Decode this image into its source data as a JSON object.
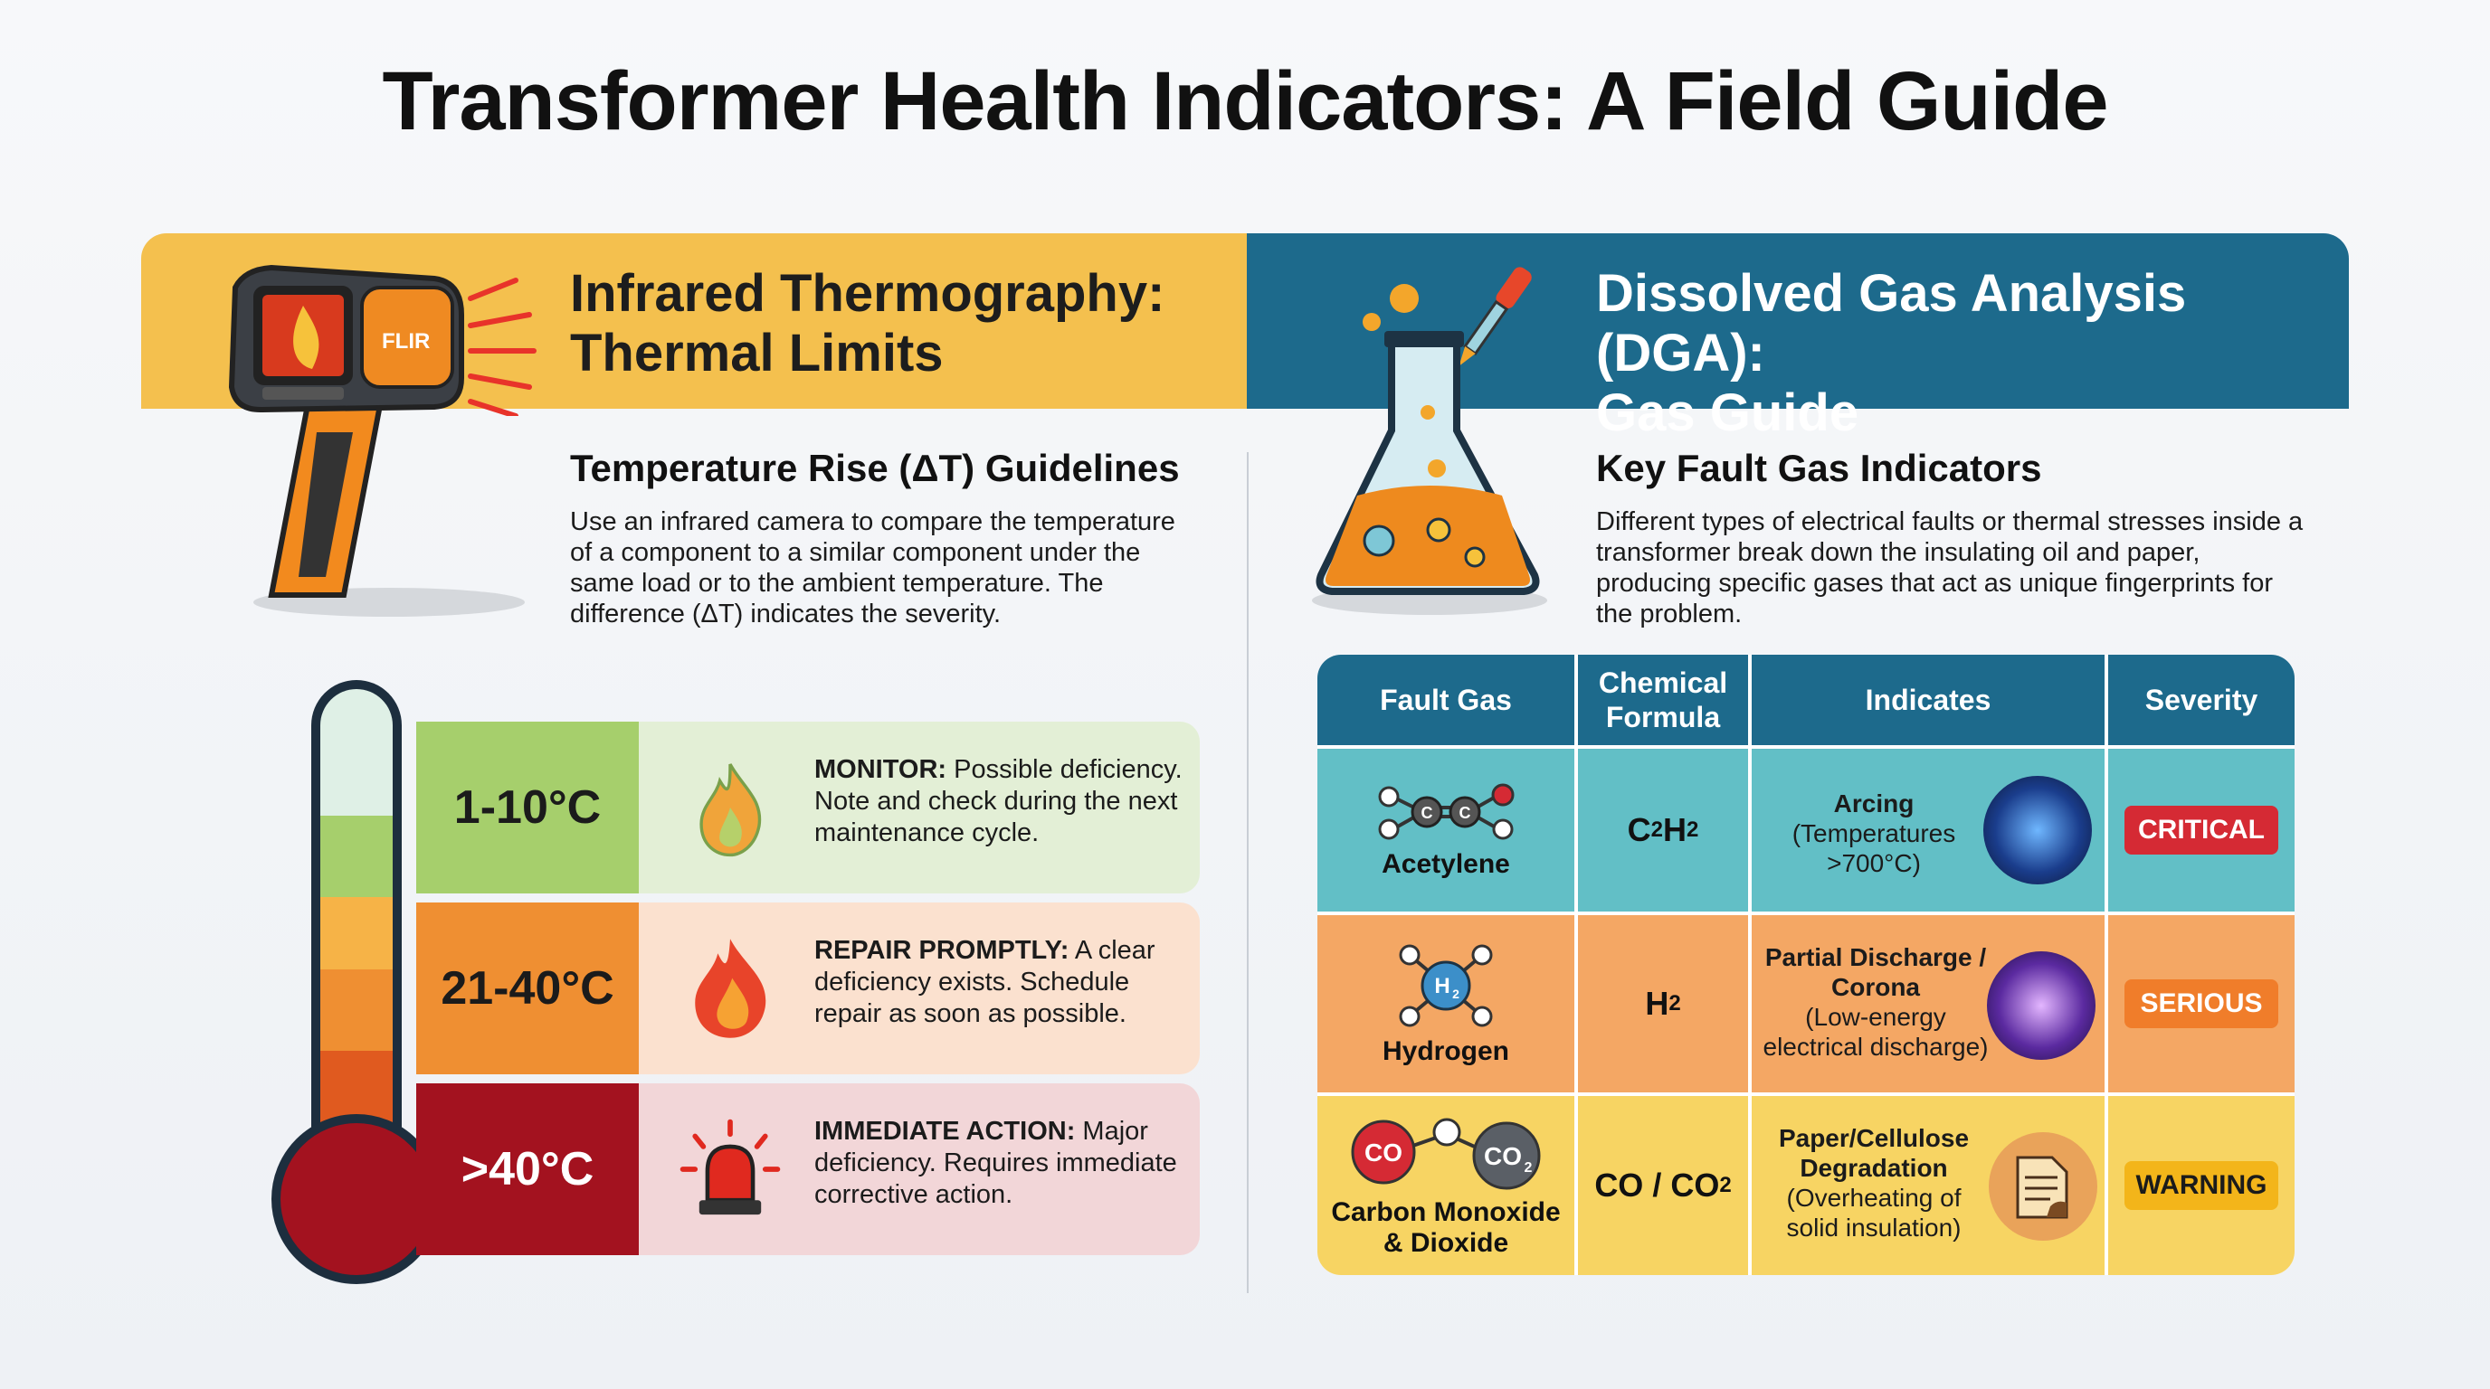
{
  "title": "Transformer Health Indicators: A Field Guide",
  "left": {
    "header": "Infrared Thermography: Thermal Limits",
    "header_line1": "Infrared Thermography:",
    "header_line2": "Thermal Limits",
    "camera_brand": "FLIR",
    "subtitle": "Temperature Rise (ΔT) Guidelines",
    "intro": "Use an infrared camera to compare the temperature of a component to a similar component under the same load or to the ambient temperature. The difference (ΔT) indicates the severity.",
    "rows": [
      {
        "range": "1-10°C",
        "action": "MONITOR:",
        "text": " Possible deficiency. Note and check during the next maintenance cycle.",
        "icon": "small-flame-icon",
        "color": "#a6cf6c",
        "bg": "#e3efd6"
      },
      {
        "range": "21-40°C",
        "action": "REPAIR PROMPTLY:",
        "text": " A clear deficiency exists. Schedule repair as soon as possible.",
        "icon": "flame-icon",
        "color": "#ef8f32",
        "bg": "#fbe1cf"
      },
      {
        "range": ">40°C",
        "action": "IMMEDIATE ACTION:",
        "text": " Major deficiency. Requires immediate corrective action.",
        "icon": "alarm-light-icon",
        "color": "#a3121f",
        "bg": "#f2d6d8"
      }
    ]
  },
  "right": {
    "header": "Dissolved Gas Analysis (DGA): Gas Guide",
    "header_line1": "Dissolved Gas Analysis (DGA):",
    "header_line2": "Gas Guide",
    "subtitle": "Key Fault Gas Indicators",
    "intro": "Different types of electrical faults or thermal stresses inside a transformer break down the insulating oil and paper, producing specific gases that act as unique fingerprints for the problem.",
    "table": {
      "headers": [
        "Fault Gas",
        "Chemical Formula",
        "Indicates",
        "Severity"
      ],
      "header_formula_line1": "Chemical",
      "header_formula_line2": "Formula",
      "rows": [
        {
          "gas": "Acetylene",
          "gas_lines": [
            "Acetylene"
          ],
          "molecule": [
            "C",
            "C"
          ],
          "formula_main": "C",
          "formula_sub": "2",
          "formula_main2": "H",
          "formula_sub2": "2",
          "indicates_bold": [
            "Arcing"
          ],
          "indicates": "(Temperatures >700°C)",
          "indicates_lines": [
            "(Temperatures",
            ">700°C)"
          ],
          "severity": "CRITICAL",
          "bg": "#62bfc6",
          "badge_bg": "#d52a34",
          "icon": "arc-plasma-icon"
        },
        {
          "gas": "Hydrogen",
          "gas_lines": [
            "Hydrogen"
          ],
          "molecule_label": "H",
          "molecule_sub": "2",
          "formula_main": "H",
          "formula_sub": "2",
          "indicates_bold": [
            "Partial Discharge /",
            "Corona"
          ],
          "indicates": "(Low-energy electrical discharge)",
          "indicates_lines": [
            "(Low-energy",
            "electrical discharge)"
          ],
          "severity": "SERIOUS",
          "bg": "#f4a764",
          "badge_bg": "#f07d2a",
          "icon": "plasma-ball-icon"
        },
        {
          "gas": "Carbon Monoxide & Dioxide",
          "gas_lines": [
            "Carbon Monoxide",
            "& Dioxide"
          ],
          "molecule_co": "CO",
          "molecule_co2_main": "CO",
          "molecule_co2_sub": "2",
          "formula_text": "CO / CO",
          "formula_sub": "2",
          "indicates_bold": [
            "Paper/Cellulose",
            "Degradation"
          ],
          "indicates": "(Overheating of solid insulation)",
          "indicates_lines": [
            "(Overheating of",
            "solid insulation)"
          ],
          "severity": "WARNING",
          "bg": "#f7d463",
          "badge_bg": "#f3b51a",
          "icon": "burnt-paper-icon"
        }
      ]
    }
  }
}
